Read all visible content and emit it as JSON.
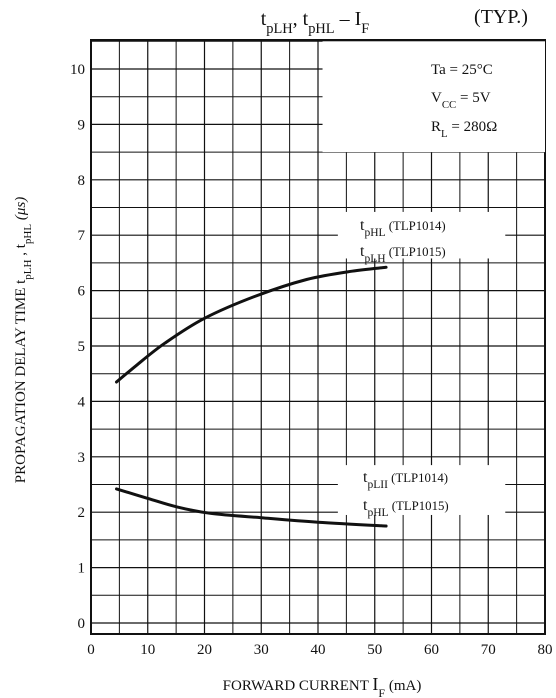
{
  "chart_data": {
    "type": "line",
    "title": {
      "parts": [
        {
          "t": "t"
        },
        {
          "t": "pLH",
          "sub": true
        },
        {
          "t": ", t"
        },
        {
          "t": "pHL",
          "sub": true
        },
        {
          "t": " – I"
        },
        {
          "t": "F",
          "sub": true
        }
      ],
      "typ": "(TYP.)"
    },
    "xlabel": "FORWARD CURRENT",
    "xlabel_symbol": {
      "main": "I",
      "sub": "F"
    },
    "xlabel_unit": "(mA)",
    "ylabel_text": "PROPAGATION DELAY TIME",
    "ylabel_symbols": [
      {
        "main": "t",
        "sub": "pLH"
      },
      {
        "main": " , t",
        "sub": "pHL"
      }
    ],
    "ylabel_unit": "(μs)",
    "xlim": [
      0,
      80
    ],
    "ylim": [
      0,
      10.5
    ],
    "xticks": [
      0,
      10,
      20,
      30,
      40,
      50,
      60,
      70,
      80
    ],
    "yticks": [
      0,
      1,
      2,
      3,
      4,
      5,
      6,
      7,
      8,
      9,
      10
    ],
    "grid": true,
    "conditions": [
      [
        {
          "t": "Ta = 25°C"
        }
      ],
      [
        {
          "t": "V"
        },
        {
          "t": "CC",
          "sub": true
        },
        {
          "t": " = 5V"
        }
      ],
      [
        {
          "t": "R"
        },
        {
          "t": "L",
          "sub": true
        },
        {
          "t": " = 280Ω"
        }
      ]
    ],
    "series": [
      {
        "x": [
          4.5,
          8,
          13,
          20,
          29,
          38,
          46,
          52
        ],
        "y": [
          4.35,
          4.65,
          5.05,
          5.5,
          5.9,
          6.2,
          6.35,
          6.42
        ]
      },
      {
        "x": [
          4.5,
          10,
          15,
          21,
          30,
          40,
          52
        ],
        "y": [
          2.42,
          2.25,
          2.1,
          1.98,
          1.9,
          1.82,
          1.75
        ]
      }
    ],
    "annotations": [
      {
        "lines": [
          [
            {
              "t": "t"
            },
            {
              "t": "pHL",
              "sub": true
            },
            {
              "t": " (TLP1014)",
              "small": true
            }
          ],
          [
            {
              "t": "t"
            },
            {
              "t": "pLH",
              "sub": true
            },
            {
              "t": " (TLP1015)",
              "small": true
            }
          ]
        ]
      },
      {
        "lines": [
          [
            {
              "t": "t"
            },
            {
              "t": "pLII",
              "sub": true
            },
            {
              "t": " (TLP1014)",
              "small": true
            }
          ],
          [
            {
              "t": "t"
            },
            {
              "t": "pHL",
              "sub": true
            },
            {
              "t": " (TLP1015)",
              "small": true
            }
          ]
        ]
      }
    ]
  }
}
